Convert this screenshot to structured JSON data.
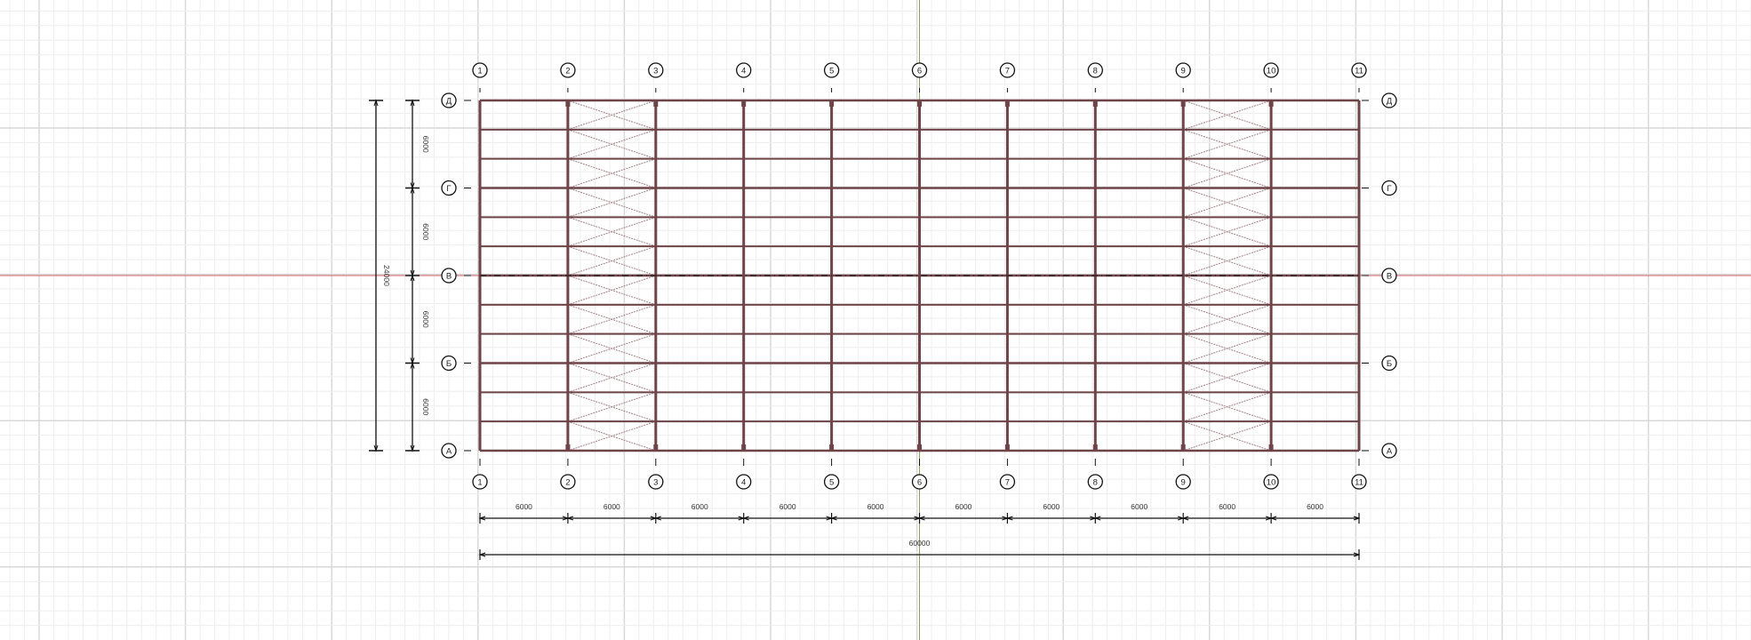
{
  "plan": {
    "column_axes": [
      "1",
      "2",
      "3",
      "4",
      "5",
      "6",
      "7",
      "8",
      "9",
      "10",
      "11"
    ],
    "row_axes": [
      "Д",
      "Г",
      "В",
      "Б",
      "А"
    ],
    "bay_dimensions": [
      "6000",
      "6000",
      "6000",
      "6000",
      "6000",
      "6000",
      "6000",
      "6000",
      "6000",
      "6000"
    ],
    "overall_length": "60000",
    "span_dimensions": [
      "6000",
      "6000",
      "6000",
      "6000"
    ],
    "overall_width": "24000",
    "braced_bays": [
      "2-3",
      "9-10"
    ],
    "purlins_per_span": 2
  },
  "colors": {
    "frame": "#6e4448",
    "bracing": "#a08085",
    "x_axis_line": "#d9606a",
    "y_axis_line": "#8aa05a",
    "grid_minor": "#eeeeee",
    "grid_major": "#d8d8d8",
    "annotation": "#111111"
  }
}
